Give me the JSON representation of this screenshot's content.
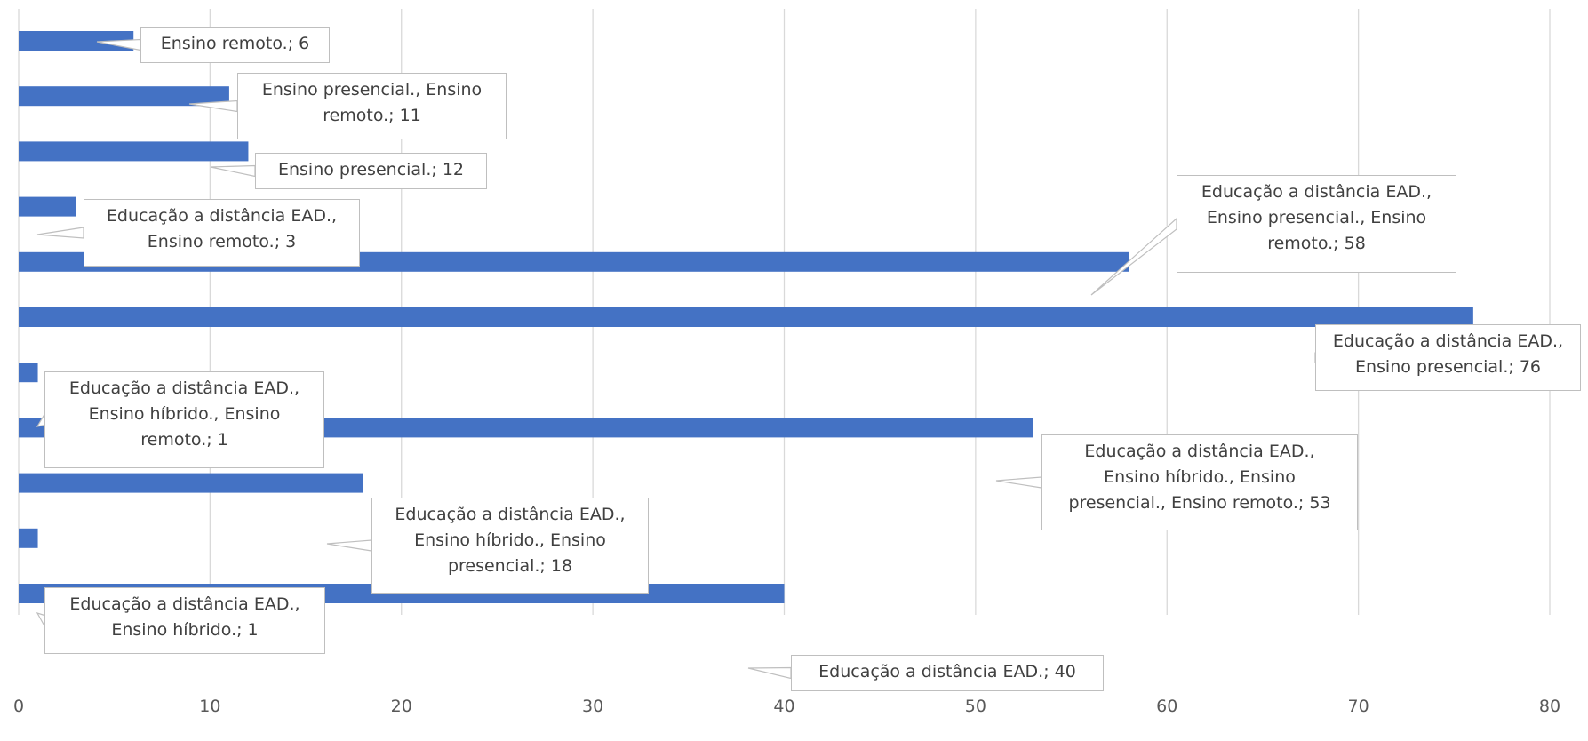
{
  "chart_data": {
    "type": "bar",
    "orientation": "horizontal",
    "categories": [
      "Ensino remoto.",
      "Ensino presencial., Ensino remoto.",
      "Ensino presencial.",
      "Educação a distância EAD., Ensino remoto.",
      "Educação a distância EAD., Ensino presencial., Ensino remoto.",
      "Educação a distância EAD., Ensino presencial.",
      "Educação a distância EAD., Ensino híbrido., Ensino remoto.",
      "Educação a distância EAD., Ensino híbrido., Ensino presencial., Ensino remoto.",
      "Educação a distância EAD., Ensino híbrido., Ensino presencial.",
      "Educação a distância EAD., Ensino híbrido.",
      "Educação a distância EAD."
    ],
    "values": [
      6,
      11,
      12,
      3,
      58,
      76,
      1,
      53,
      18,
      1,
      40
    ],
    "data_labels": [
      "Ensino remoto.; 6",
      "Ensino presencial., Ensino\nremoto.; 11",
      "Ensino presencial.; 12",
      "Educação a distância EAD.,\nEnsino remoto.; 3",
      "Educação a distância EAD.,\nEnsino presencial., Ensino\nremoto.; 58",
      "Educação a distância EAD.,\nEnsino presencial.; 76",
      "Educação a distância EAD.,\nEnsino híbrido., Ensino\nremoto.; 1",
      "Educação a distância EAD.,\nEnsino híbrido., Ensino\npresencial., Ensino remoto.; 53",
      "Educação a distância EAD.,\nEnsino híbrido., Ensino\npresencial.; 18",
      "Educação a distância EAD.,\nEnsino híbrido.; 1",
      "Educação a distância EAD.; 40"
    ],
    "xlim": [
      0,
      80
    ],
    "x_ticks": [
      0,
      10,
      20,
      30,
      40,
      50,
      60,
      70,
      80
    ],
    "grid": true,
    "legend": "none",
    "bar_color": "#4472C4",
    "title": "",
    "xlabel": "",
    "ylabel": ""
  }
}
